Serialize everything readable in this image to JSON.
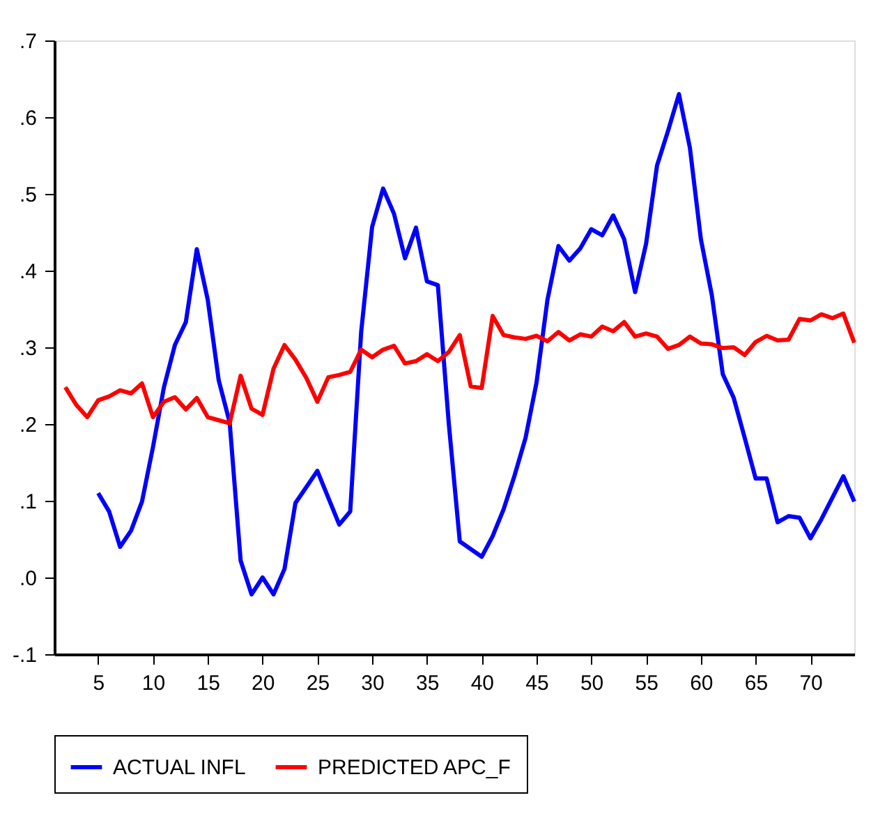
{
  "chart_data": {
    "type": "line",
    "xlim": [
      1,
      74
    ],
    "ylim": [
      -0.1,
      0.7
    ],
    "xticks": [
      5,
      10,
      15,
      20,
      25,
      30,
      35,
      40,
      45,
      50,
      55,
      60,
      65,
      70
    ],
    "yticks": [
      {
        "value": -0.1,
        "label": "-.1"
      },
      {
        "value": 0,
        "label": ".0"
      },
      {
        "value": 0.1,
        "label": ".1"
      },
      {
        "value": 0.2,
        "label": ".2"
      },
      {
        "value": 0.3,
        "label": ".3"
      },
      {
        "value": 0.4,
        "label": ".4"
      },
      {
        "value": 0.5,
        "label": ".5"
      },
      {
        "value": 0.6,
        "label": ".6"
      },
      {
        "value": 0.7,
        "label": ".7"
      }
    ],
    "grid": false,
    "legend": "bottom",
    "line_style": "solid",
    "marker": "none",
    "series": [
      {
        "name": "ACTUAL INFL",
        "color": "#0000ff",
        "x": [
          5,
          6,
          7,
          8,
          9,
          10,
          11,
          12,
          13,
          14,
          15,
          16,
          17,
          18,
          19,
          20,
          21,
          22,
          23,
          24,
          25,
          26,
          27,
          28,
          29,
          30,
          31,
          32,
          33,
          34,
          35,
          36,
          37,
          38,
          39,
          40,
          41,
          42,
          43,
          44,
          45,
          46,
          47,
          48,
          49,
          50,
          51,
          52,
          53,
          54,
          55,
          56,
          57,
          58,
          59,
          60,
          61,
          62,
          63,
          64,
          65,
          66,
          67,
          68,
          69,
          70,
          71,
          72,
          73,
          74
        ],
        "values": [
          0.11,
          0.086,
          0.04,
          0.061,
          0.099,
          0.17,
          0.248,
          0.303,
          0.333,
          0.428,
          0.362,
          0.257,
          0.202,
          0.022,
          -0.022,
          0.0,
          -0.022,
          0.011,
          0.097,
          0.118,
          0.139,
          0.104,
          0.069,
          0.086,
          0.32,
          0.457,
          0.507,
          0.474,
          0.416,
          0.456,
          0.386,
          0.381,
          0.2,
          0.047,
          0.037,
          0.027,
          0.054,
          0.089,
          0.133,
          0.182,
          0.254,
          0.362,
          0.432,
          0.413,
          0.429,
          0.454,
          0.446,
          0.472,
          0.441,
          0.372,
          0.435,
          0.537,
          0.582,
          0.63,
          0.56,
          0.441,
          0.368,
          0.265,
          0.234,
          0.182,
          0.129,
          0.129,
          0.072,
          0.08,
          0.078,
          0.051,
          0.076,
          0.104,
          0.132,
          0.099
        ]
      },
      {
        "name": "PREDICTED APC_F",
        "color": "#ff0000",
        "x": [
          2,
          3,
          4,
          5,
          6,
          7,
          8,
          9,
          10,
          11,
          12,
          13,
          14,
          15,
          16,
          17,
          18,
          19,
          20,
          21,
          22,
          23,
          24,
          25,
          26,
          27,
          28,
          29,
          30,
          31,
          32,
          33,
          34,
          35,
          36,
          37,
          38,
          39,
          40,
          41,
          42,
          43,
          44,
          45,
          46,
          47,
          48,
          49,
          50,
          51,
          52,
          53,
          54,
          55,
          56,
          57,
          58,
          59,
          60,
          61,
          62,
          63,
          64,
          65,
          66,
          67,
          68,
          69,
          70,
          71,
          72,
          73,
          74
        ],
        "values": [
          0.248,
          0.225,
          0.209,
          0.231,
          0.236,
          0.244,
          0.24,
          0.253,
          0.209,
          0.229,
          0.235,
          0.219,
          0.234,
          0.209,
          0.205,
          0.201,
          0.263,
          0.22,
          0.212,
          0.272,
          0.303,
          0.284,
          0.26,
          0.229,
          0.261,
          0.264,
          0.268,
          0.297,
          0.287,
          0.297,
          0.302,
          0.279,
          0.282,
          0.291,
          0.282,
          0.294,
          0.316,
          0.249,
          0.247,
          0.341,
          0.316,
          0.313,
          0.311,
          0.315,
          0.308,
          0.32,
          0.309,
          0.317,
          0.314,
          0.327,
          0.321,
          0.333,
          0.314,
          0.318,
          0.314,
          0.298,
          0.303,
          0.314,
          0.305,
          0.304,
          0.299,
          0.3,
          0.29,
          0.307,
          0.315,
          0.309,
          0.31,
          0.337,
          0.335,
          0.343,
          0.338,
          0.344,
          0.306
        ]
      }
    ]
  }
}
